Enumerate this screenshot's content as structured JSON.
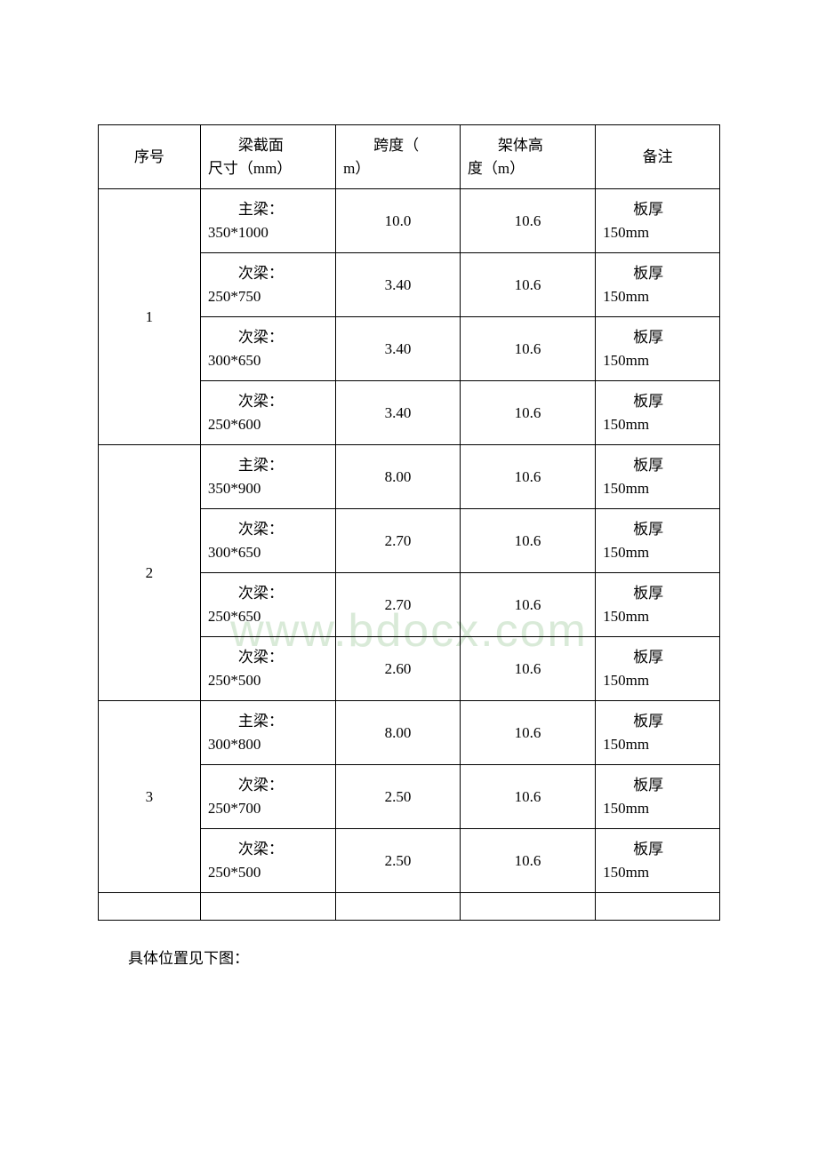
{
  "watermark": "www.bdocx.com",
  "table": {
    "headers": {
      "seq": "序号",
      "beam_l1": "梁截面",
      "beam_l2": "尺寸（mm）",
      "span_l1": "跨度（",
      "span_l2": "m）",
      "height_l1": "架体高",
      "height_l2": "度（m）",
      "note": "备注"
    },
    "groups": [
      {
        "seq": "1",
        "rows": [
          {
            "beam_l1": "主梁：",
            "beam_l2": "350*1000",
            "span": "10.0",
            "height": "10.6",
            "note_l1": "板厚",
            "note_l2": "150mm"
          },
          {
            "beam_l1": "次梁：",
            "beam_l2": "250*750",
            "span": "3.40",
            "height": "10.6",
            "note_l1": "板厚",
            "note_l2": "150mm"
          },
          {
            "beam_l1": "次梁：",
            "beam_l2": "300*650",
            "span": "3.40",
            "height": "10.6",
            "note_l1": "板厚",
            "note_l2": "150mm"
          },
          {
            "beam_l1": "次梁：",
            "beam_l2": "250*600",
            "span": "3.40",
            "height": "10.6",
            "note_l1": "板厚",
            "note_l2": "150mm"
          }
        ]
      },
      {
        "seq": "2",
        "rows": [
          {
            "beam_l1": "主梁：",
            "beam_l2": "350*900",
            "span": "8.00",
            "height": "10.6",
            "note_l1": "板厚",
            "note_l2": "150mm"
          },
          {
            "beam_l1": "次梁：",
            "beam_l2": "300*650",
            "span": "2.70",
            "height": "10.6",
            "note_l1": "板厚",
            "note_l2": "150mm"
          },
          {
            "beam_l1": "次梁：",
            "beam_l2": "250*650",
            "span": "2.70",
            "height": "10.6",
            "note_l1": "板厚",
            "note_l2": "150mm"
          },
          {
            "beam_l1": "次梁：",
            "beam_l2": "250*500",
            "span": "2.60",
            "height": "10.6",
            "note_l1": "板厚",
            "note_l2": "150mm"
          }
        ]
      },
      {
        "seq": "3",
        "rows": [
          {
            "beam_l1": "主梁：",
            "beam_l2": "300*800",
            "span": "8.00",
            "height": "10.6",
            "note_l1": "板厚",
            "note_l2": "150mm"
          },
          {
            "beam_l1": "次梁：",
            "beam_l2": "250*700",
            "span": "2.50",
            "height": "10.6",
            "note_l1": "板厚",
            "note_l2": "150mm"
          },
          {
            "beam_l1": "次梁：",
            "beam_l2": "250*500",
            "span": "2.50",
            "height": "10.6",
            "note_l1": "板厚",
            "note_l2": "150mm"
          }
        ]
      }
    ]
  },
  "caption": "具体位置见下图："
}
